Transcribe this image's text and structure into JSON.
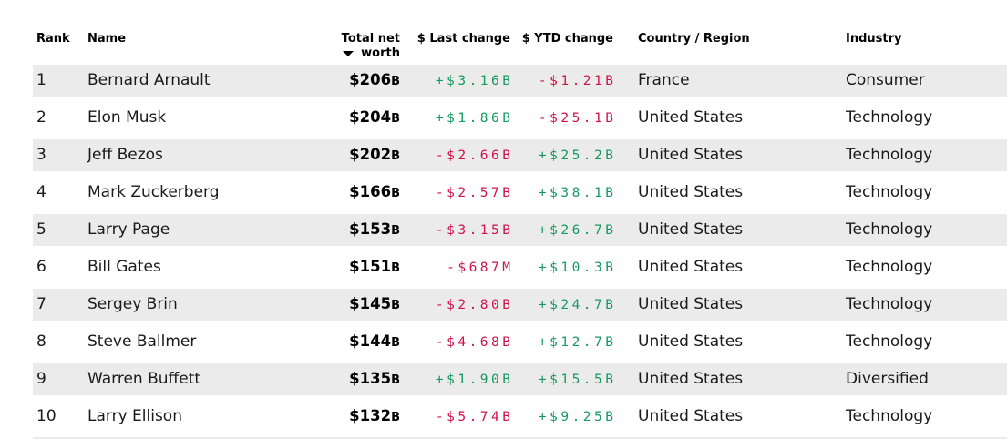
{
  "table": {
    "columns": {
      "rank": "Rank",
      "name": "Name",
      "net_worth": "Total net worth",
      "last_change": "$ Last change",
      "ytd_change": "$ YTD change",
      "country": "Country / Region",
      "industry": "Industry"
    },
    "sort": {
      "column": "net_worth",
      "direction": "descending"
    },
    "rows": [
      {
        "rank": "1",
        "name": "Bernard Arnault",
        "net_worth": "$206B",
        "last_change": "+$3.16B",
        "ytd_change": "-$1.21B",
        "country": "France",
        "industry": "Consumer"
      },
      {
        "rank": "2",
        "name": "Elon Musk",
        "net_worth": "$204B",
        "last_change": "+$1.86B",
        "ytd_change": "-$25.1B",
        "country": "United States",
        "industry": "Technology"
      },
      {
        "rank": "3",
        "name": "Jeff Bezos",
        "net_worth": "$202B",
        "last_change": "-$2.66B",
        "ytd_change": "+$25.2B",
        "country": "United States",
        "industry": "Technology"
      },
      {
        "rank": "4",
        "name": "Mark Zuckerberg",
        "net_worth": "$166B",
        "last_change": "-$2.57B",
        "ytd_change": "+$38.1B",
        "country": "United States",
        "industry": "Technology"
      },
      {
        "rank": "5",
        "name": "Larry Page",
        "net_worth": "$153B",
        "last_change": "-$3.15B",
        "ytd_change": "+$26.7B",
        "country": "United States",
        "industry": "Technology"
      },
      {
        "rank": "6",
        "name": "Bill Gates",
        "net_worth": "$151B",
        "last_change": "-$687M",
        "ytd_change": "+$10.3B",
        "country": "United States",
        "industry": "Technology"
      },
      {
        "rank": "7",
        "name": "Sergey Brin",
        "net_worth": "$145B",
        "last_change": "-$2.80B",
        "ytd_change": "+$24.7B",
        "country": "United States",
        "industry": "Technology"
      },
      {
        "rank": "8",
        "name": "Steve Ballmer",
        "net_worth": "$144B",
        "last_change": "-$4.68B",
        "ytd_change": "+$12.7B",
        "country": "United States",
        "industry": "Technology"
      },
      {
        "rank": "9",
        "name": "Warren Buffett",
        "net_worth": "$135B",
        "last_change": "+$1.90B",
        "ytd_change": "+$15.5B",
        "country": "United States",
        "industry": "Diversified"
      },
      {
        "rank": "10",
        "name": "Larry Ellison",
        "net_worth": "$132B",
        "last_change": "-$5.74B",
        "ytd_change": "+$9.25B",
        "country": "United States",
        "industry": "Technology"
      }
    ]
  },
  "colors": {
    "positive": "#149961",
    "negative": "#d0124b",
    "row_stripe": "#ebebeb"
  }
}
